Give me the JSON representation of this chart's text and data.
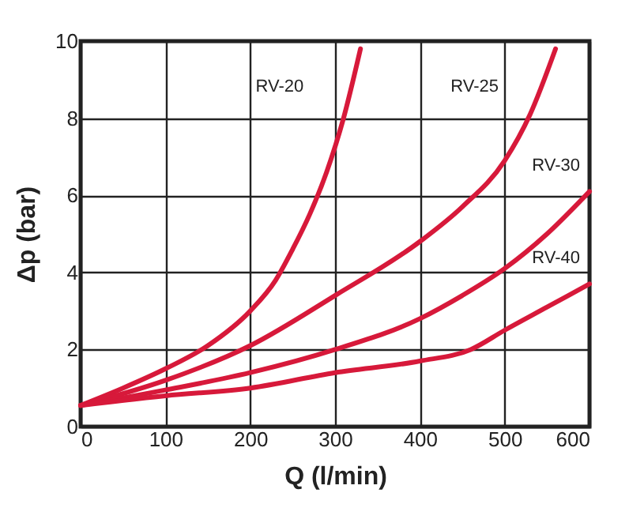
{
  "chart_data": {
    "type": "line",
    "xlabel": "Q (l/min)",
    "ylabel": "Δp (bar)",
    "xlim": [
      0,
      600
    ],
    "ylim": [
      0,
      10
    ],
    "xticks": [
      0,
      100,
      200,
      300,
      400,
      500,
      600
    ],
    "yticks": [
      0,
      2,
      4,
      6,
      8,
      10
    ],
    "grid": true,
    "line_style": "solid",
    "marker": "none",
    "series": [
      {
        "name": "RV-20",
        "color": "#d7193a",
        "x": [
          0,
          50,
          100,
          150,
          200,
          230,
          250,
          270,
          290,
          310,
          330
        ],
        "values": [
          0.55,
          1.0,
          1.5,
          2.1,
          3.0,
          3.8,
          4.6,
          5.5,
          6.6,
          8.0,
          9.8
        ]
      },
      {
        "name": "RV-25",
        "color": "#d7193a",
        "x": [
          0,
          100,
          200,
          300,
          400,
          450,
          500,
          530,
          560
        ],
        "values": [
          0.55,
          1.2,
          2.1,
          3.4,
          4.8,
          5.7,
          6.9,
          8.1,
          9.8
        ]
      },
      {
        "name": "RV-30",
        "color": "#d7193a",
        "x": [
          0,
          100,
          200,
          300,
          400,
          450,
          500,
          550,
          600
        ],
        "values": [
          0.55,
          0.95,
          1.4,
          2.0,
          2.8,
          3.4,
          4.1,
          5.0,
          6.1
        ]
      },
      {
        "name": "RV-40",
        "color": "#d7193a",
        "x": [
          0,
          100,
          200,
          300,
          400,
          460,
          500,
          550,
          600
        ],
        "values": [
          0.55,
          0.8,
          1.0,
          1.4,
          1.7,
          2.0,
          2.5,
          3.1,
          3.7
        ]
      }
    ]
  }
}
